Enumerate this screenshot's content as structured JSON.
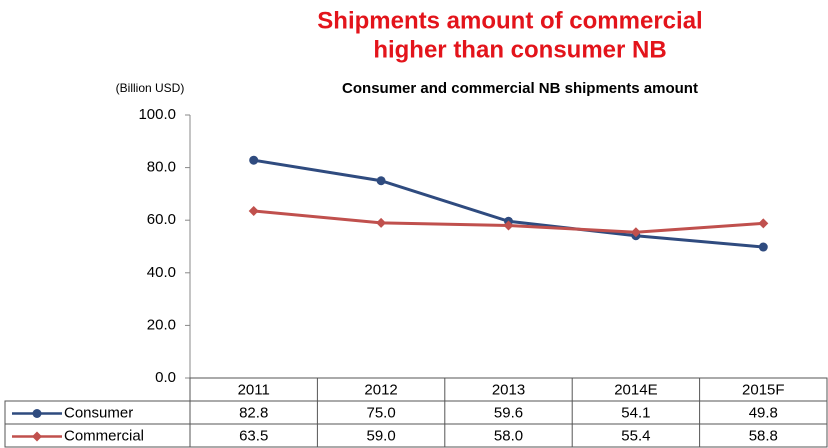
{
  "chart_data": {
    "type": "line",
    "title": [
      "Shipments amount of commercial",
      "higher than consumer NB"
    ],
    "subtitle": "Consumer and commercial NB shipments amount",
    "y_label": "(Billion USD)",
    "categories": [
      "2011",
      "2012",
      "2013",
      "2014E",
      "2015F"
    ],
    "series": [
      {
        "name": "Consumer",
        "color": "#2f4b7f",
        "marker": "circle",
        "values": [
          82.8,
          75.0,
          59.6,
          54.1,
          49.8
        ],
        "value_labels": [
          "82.8",
          "75.0",
          "59.6",
          "54.1",
          "49.8"
        ]
      },
      {
        "name": "Commercial",
        "color": "#c0504d",
        "marker": "diamond",
        "values": [
          63.5,
          59.0,
          58.0,
          55.4,
          58.8
        ],
        "value_labels": [
          "63.5",
          "59.0",
          "58.0",
          "55.4",
          "58.8"
        ]
      }
    ],
    "ylim": [
      0,
      100
    ],
    "yticks": [
      {
        "value": 0,
        "label": "0.0"
      },
      {
        "value": 20,
        "label": "20.0"
      },
      {
        "value": 40,
        "label": "40.0"
      },
      {
        "value": 60,
        "label": "60.0"
      },
      {
        "value": 80,
        "label": "80.0"
      },
      {
        "value": 100,
        "label": "100.0"
      }
    ],
    "grid": false
  }
}
